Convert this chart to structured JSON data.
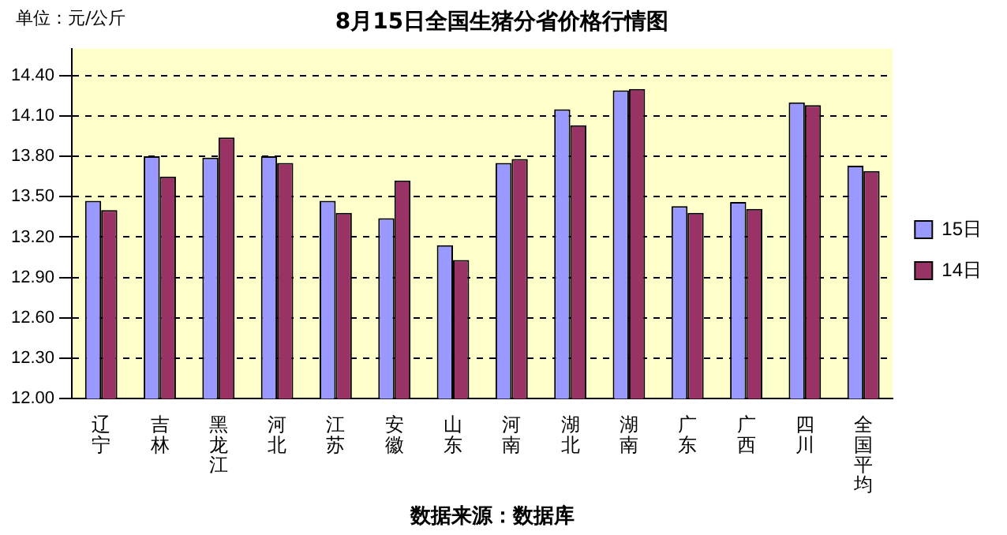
{
  "chart_data": {
    "type": "bar",
    "title": "8月15日全国生猪分省价格行情图",
    "categories": [
      "辽宁",
      "吉林",
      "黑龙江",
      "河北",
      "江苏",
      "安徽",
      "山东",
      "河南",
      "湖北",
      "湖南",
      "广东",
      "广西",
      "四川",
      "全国平均"
    ],
    "series": [
      {
        "name": "15日",
        "color": "#9999ff",
        "values": [
          13.47,
          13.8,
          13.79,
          13.8,
          13.47,
          13.34,
          13.14,
          13.75,
          14.15,
          14.29,
          13.43,
          13.46,
          14.2,
          13.73
        ]
      },
      {
        "name": "14日",
        "color": "#993366",
        "values": [
          13.4,
          13.65,
          13.94,
          13.75,
          13.38,
          13.62,
          13.03,
          13.78,
          14.03,
          14.3,
          13.38,
          13.41,
          14.18,
          13.69
        ]
      }
    ],
    "ylim": [
      12.0,
      14.6
    ],
    "yticks": [
      {
        "value": 12.0,
        "label": "12.00"
      },
      {
        "value": 12.3,
        "label": "12.30"
      },
      {
        "value": 12.6,
        "label": "12.60"
      },
      {
        "value": 12.9,
        "label": "12.90"
      },
      {
        "value": 13.2,
        "label": "13.20"
      },
      {
        "value": 13.5,
        "label": "13.50"
      },
      {
        "value": 13.8,
        "label": "13.80"
      },
      {
        "value": 14.1,
        "label": "14.10"
      },
      {
        "value": 14.4,
        "label": "14.40"
      }
    ],
    "grid": "y",
    "legend": "right",
    "annotations": [
      "单位：元/公斤",
      "数据来源：数据库"
    ]
  }
}
